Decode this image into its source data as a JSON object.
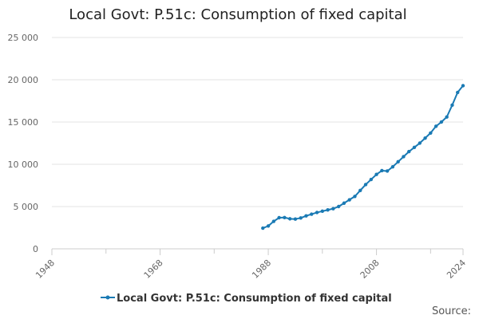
{
  "chart_data": {
    "type": "line",
    "title": "Local Govt: P.51c: Consumption of fixed capital",
    "xlabel": "",
    "ylabel": "",
    "xlim": [
      1948,
      2024
    ],
    "ylim": [
      0,
      25000
    ],
    "x_ticks": [
      1948,
      1968,
      1988,
      2008,
      2024
    ],
    "x_tick_labels": [
      "1948",
      "1968",
      "1988",
      "2008",
      "2024"
    ],
    "y_ticks": [
      0,
      5000,
      10000,
      15000,
      20000,
      25000
    ],
    "y_tick_labels": [
      "0",
      "5 000",
      "10 000",
      "15 000",
      "20 000",
      "25 000"
    ],
    "minor_x_ticks": [
      1958,
      1978,
      1998,
      2018
    ],
    "grid": true,
    "legend_position": "bottom",
    "color": "#1a7ab4",
    "series": [
      {
        "name": "Local Govt: P.51c: Consumption of fixed capital",
        "x": [
          1987,
          1988,
          1989,
          1990,
          1991,
          1992,
          1993,
          1994,
          1995,
          1996,
          1997,
          1998,
          1999,
          2000,
          2001,
          2002,
          2003,
          2004,
          2005,
          2006,
          2007,
          2008,
          2009,
          2010,
          2011,
          2012,
          2013,
          2014,
          2015,
          2016,
          2017,
          2018,
          2019,
          2020,
          2021,
          2022,
          2023,
          2024
        ],
        "values": [
          2450,
          2700,
          3250,
          3680,
          3700,
          3550,
          3520,
          3650,
          3900,
          4100,
          4300,
          4450,
          4600,
          4750,
          5000,
          5400,
          5800,
          6200,
          6900,
          7600,
          8200,
          8800,
          9250,
          9200,
          9700,
          10300,
          10900,
          11500,
          12000,
          12500,
          13100,
          13700,
          14500,
          15000,
          15600,
          17000,
          18500,
          19300
        ]
      }
    ],
    "legend_label": "Local Govt: P.51c: Consumption of fixed capital",
    "source_label": "Source:"
  }
}
